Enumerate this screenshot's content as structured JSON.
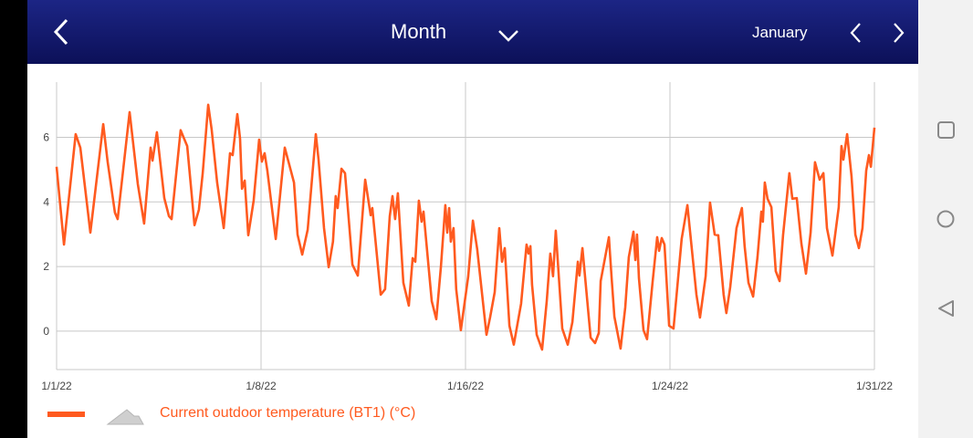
{
  "header": {
    "title": "Month",
    "period": "January",
    "back_icon": "chevron-left-icon",
    "dropdown_icon": "chevron-down-icon",
    "prev_icon": "chevron-left-icon",
    "next_icon": "chevron-right-icon"
  },
  "navbar": {
    "icons": [
      "square-recents-icon",
      "circle-home-icon",
      "triangle-back-icon"
    ]
  },
  "colors": {
    "header": "#141b70",
    "series": "#ff5a1f",
    "grid": "#c8c8c8"
  },
  "chart_data": {
    "type": "line",
    "title": "",
    "xlabel": "",
    "ylabel": "",
    "x_unit": "days since 1/1/22",
    "xlim": [
      0,
      30
    ],
    "ylim": [
      -1.19,
      7.71
    ],
    "grid": true,
    "yticks": [
      0,
      2,
      4,
      6
    ],
    "ytick_labels": [
      "0",
      "2",
      "4",
      "6"
    ],
    "xticks": [
      0,
      7.5,
      15,
      22.5,
      30
    ],
    "xtick_labels": [
      "1/1/22",
      "1/8/22",
      "1/16/22",
      "1/24/22",
      "1/31/22"
    ],
    "legend": {
      "placement": "bottom-left",
      "entries": [
        "Current outdoor temperature (BT1) (°C)"
      ]
    },
    "series": [
      {
        "name": "Current outdoor temperature (BT1) (°C)",
        "points": [
          [
            0,
            5.09
          ],
          [
            0.27,
            2.68
          ],
          [
            0.7,
            6.1
          ],
          [
            0.87,
            5.68
          ],
          [
            1.24,
            3.05
          ],
          [
            1.71,
            6.41
          ],
          [
            1.87,
            5.25
          ],
          [
            2.14,
            3.67
          ],
          [
            2.24,
            3.47
          ],
          [
            2.68,
            6.78
          ],
          [
            2.98,
            4.55
          ],
          [
            3.21,
            3.33
          ],
          [
            3.45,
            5.68
          ],
          [
            3.52,
            5.28
          ],
          [
            3.68,
            6.16
          ],
          [
            3.95,
            4.12
          ],
          [
            4.12,
            3.56
          ],
          [
            4.22,
            3.47
          ],
          [
            4.55,
            6.22
          ],
          [
            4.79,
            5.73
          ],
          [
            5.06,
            3.28
          ],
          [
            5.22,
            3.76
          ],
          [
            5.36,
            4.89
          ],
          [
            5.56,
            7.01
          ],
          [
            5.69,
            6.24
          ],
          [
            5.89,
            4.6
          ],
          [
            6.13,
            3.19
          ],
          [
            6.36,
            5.51
          ],
          [
            6.46,
            5.45
          ],
          [
            6.63,
            6.72
          ],
          [
            6.73,
            5.96
          ],
          [
            6.8,
            4.41
          ],
          [
            6.9,
            4.66
          ],
          [
            7.03,
            2.97
          ],
          [
            7.23,
            4.04
          ],
          [
            7.43,
            5.93
          ],
          [
            7.53,
            5.25
          ],
          [
            7.63,
            5.51
          ],
          [
            7.73,
            4.97
          ],
          [
            8.04,
            2.85
          ],
          [
            8.37,
            5.68
          ],
          [
            8.71,
            4.6
          ],
          [
            8.84,
            2.99
          ],
          [
            9.01,
            2.37
          ],
          [
            9.21,
            3.14
          ],
          [
            9.51,
            6.1
          ],
          [
            9.61,
            5.31
          ],
          [
            9.81,
            3.19
          ],
          [
            9.98,
            1.98
          ],
          [
            10.14,
            2.77
          ],
          [
            10.24,
            4.18
          ],
          [
            10.31,
            3.81
          ],
          [
            10.45,
            5.03
          ],
          [
            10.58,
            4.89
          ],
          [
            10.85,
            2.06
          ],
          [
            11.05,
            1.72
          ],
          [
            11.32,
            4.69
          ],
          [
            11.52,
            3.59
          ],
          [
            11.58,
            3.81
          ],
          [
            11.89,
            1.13
          ],
          [
            12.05,
            1.3
          ],
          [
            12.22,
            3.56
          ],
          [
            12.32,
            4.18
          ],
          [
            12.42,
            3.47
          ],
          [
            12.52,
            4.27
          ],
          [
            12.72,
            1.5
          ],
          [
            12.92,
            0.79
          ],
          [
            13.06,
            2.26
          ],
          [
            13.16,
            2.15
          ],
          [
            13.29,
            4.04
          ],
          [
            13.39,
            3.39
          ],
          [
            13.46,
            3.7
          ],
          [
            13.76,
            0.93
          ],
          [
            13.93,
            0.37
          ],
          [
            14.1,
            2.01
          ],
          [
            14.26,
            3.9
          ],
          [
            14.33,
            3.05
          ],
          [
            14.4,
            3.81
          ],
          [
            14.46,
            2.77
          ],
          [
            14.56,
            3.19
          ],
          [
            14.66,
            1.3
          ],
          [
            14.83,
            0.03
          ],
          [
            15.1,
            1.7
          ],
          [
            15.27,
            3.42
          ],
          [
            15.43,
            2.54
          ],
          [
            15.77,
            -0.11
          ],
          [
            15.9,
            0.42
          ],
          [
            16.07,
            1.21
          ],
          [
            16.24,
            3.19
          ],
          [
            16.34,
            2.15
          ],
          [
            16.44,
            2.57
          ],
          [
            16.61,
            0.17
          ],
          [
            16.77,
            -0.42
          ],
          [
            17.04,
            0.85
          ],
          [
            17.24,
            2.68
          ],
          [
            17.31,
            2.4
          ],
          [
            17.38,
            2.63
          ],
          [
            17.44,
            1.44
          ],
          [
            17.61,
            -0.11
          ],
          [
            17.81,
            -0.57
          ],
          [
            17.98,
            0.93
          ],
          [
            18.11,
            2.4
          ],
          [
            18.21,
            1.7
          ],
          [
            18.31,
            3.11
          ],
          [
            18.55,
            0.08
          ],
          [
            18.75,
            -0.42
          ],
          [
            18.92,
            0.28
          ],
          [
            19.12,
            2.15
          ],
          [
            19.18,
            1.72
          ],
          [
            19.29,
            2.57
          ],
          [
            19.59,
            -0.2
          ],
          [
            19.75,
            -0.37
          ],
          [
            19.89,
            -0.06
          ],
          [
            19.96,
            1.55
          ],
          [
            20.26,
            2.91
          ],
          [
            20.36,
            1.64
          ],
          [
            20.46,
            0.45
          ],
          [
            20.69,
            -0.54
          ],
          [
            20.86,
            0.73
          ],
          [
            20.99,
            2.29
          ],
          [
            21.16,
            3.08
          ],
          [
            21.23,
            2.2
          ],
          [
            21.29,
            2.99
          ],
          [
            21.36,
            1.64
          ],
          [
            21.53,
            0.03
          ],
          [
            21.66,
            -0.25
          ],
          [
            21.86,
            1.5
          ],
          [
            22.03,
            2.91
          ],
          [
            22.1,
            2.49
          ],
          [
            22.2,
            2.88
          ],
          [
            22.3,
            2.68
          ],
          [
            22.47,
            0.17
          ],
          [
            22.63,
            0.08
          ],
          [
            22.93,
            2.85
          ],
          [
            23.14,
            3.9
          ],
          [
            23.47,
            1.13
          ],
          [
            23.6,
            0.42
          ],
          [
            23.81,
            1.7
          ],
          [
            23.97,
            3.98
          ],
          [
            24.14,
            2.99
          ],
          [
            24.27,
            2.97
          ],
          [
            24.47,
            1.13
          ],
          [
            24.57,
            0.56
          ],
          [
            24.71,
            1.36
          ],
          [
            24.94,
            3.19
          ],
          [
            25.14,
            3.81
          ],
          [
            25.24,
            2.63
          ],
          [
            25.38,
            1.5
          ],
          [
            25.55,
            1.07
          ],
          [
            25.71,
            2.29
          ],
          [
            25.85,
            3.7
          ],
          [
            25.91,
            3.39
          ],
          [
            25.98,
            4.6
          ],
          [
            26.08,
            4.1
          ],
          [
            26.22,
            3.84
          ],
          [
            26.38,
            1.86
          ],
          [
            26.52,
            1.55
          ],
          [
            26.65,
            2.97
          ],
          [
            26.88,
            4.89
          ],
          [
            26.99,
            4.1
          ],
          [
            27.15,
            4.12
          ],
          [
            27.32,
            2.71
          ],
          [
            27.49,
            1.78
          ],
          [
            27.66,
            3.05
          ],
          [
            27.82,
            5.23
          ],
          [
            27.99,
            4.69
          ],
          [
            28.13,
            4.89
          ],
          [
            28.26,
            3.19
          ],
          [
            28.46,
            2.34
          ],
          [
            28.69,
            3.84
          ],
          [
            28.79,
            5.73
          ],
          [
            28.86,
            5.31
          ],
          [
            29.0,
            6.1
          ],
          [
            29.16,
            4.8
          ],
          [
            29.3,
            2.99
          ],
          [
            29.43,
            2.57
          ],
          [
            29.56,
            3.19
          ],
          [
            29.7,
            4.97
          ],
          [
            29.8,
            5.45
          ],
          [
            29.87,
            5.09
          ],
          [
            30.0,
            6.3
          ]
        ]
      }
    ]
  }
}
